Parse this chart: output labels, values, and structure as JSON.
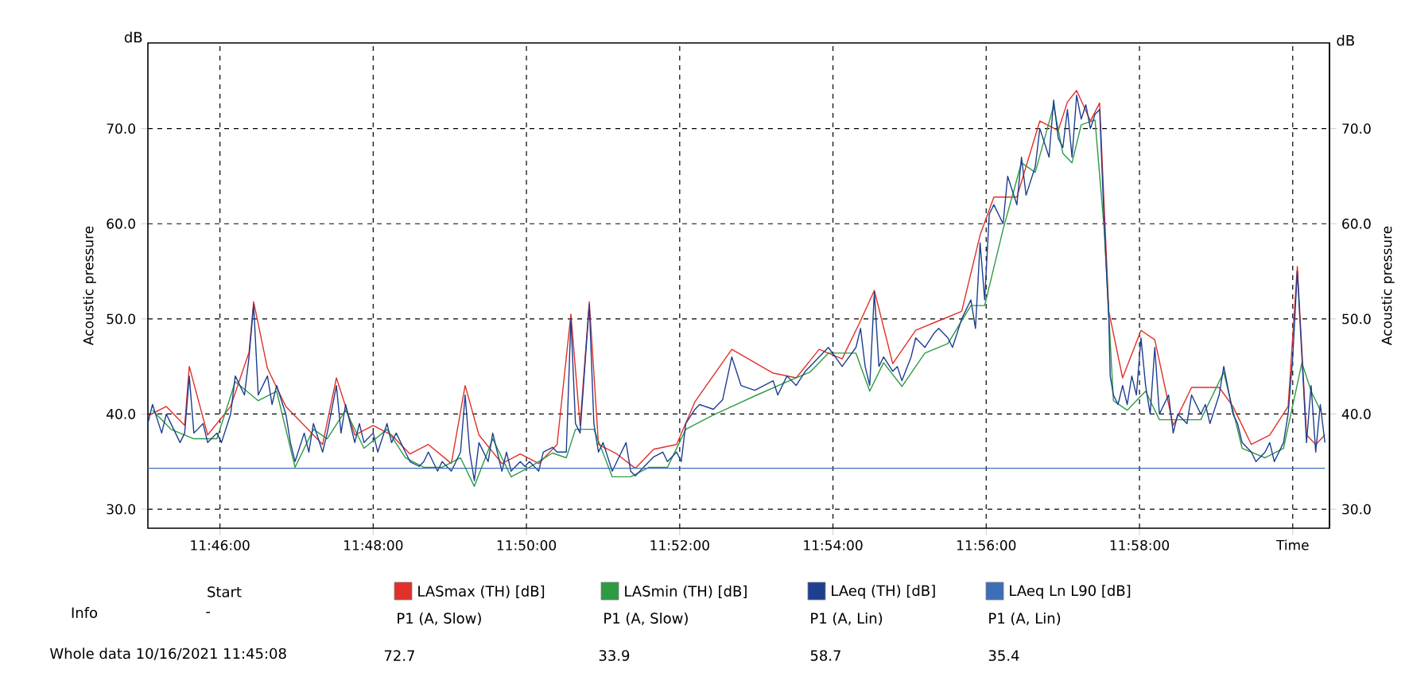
{
  "chart_data": {
    "type": "line",
    "xlabel": "Time",
    "ylabel": "Acoustic pressure",
    "y2label": "Acoustic pressure",
    "annotations": [
      "dB",
      "dB",
      "Info",
      "Start",
      "-",
      "P1 (A, Slow)",
      "P1 (A, Slow)",
      "P1 (A, Lin)",
      "P1 (A, Lin)",
      "Whole data 10/16/2021 11:45:08",
      "72.7",
      "33.9",
      "58.7",
      "35.4"
    ],
    "xlim": [
      11.751,
      12.008
    ],
    "ylim": [
      28,
      79
    ],
    "y2lim": [
      28,
      79
    ],
    "xticks": [
      {
        "value": 11.76667,
        "label": "11:46:00"
      },
      {
        "value": 11.8,
        "label": "11:48:00"
      },
      {
        "value": 11.83333,
        "label": "11:50:00"
      },
      {
        "value": 11.86667,
        "label": "11:52:00"
      },
      {
        "value": 11.9,
        "label": "11:54:00"
      },
      {
        "value": 11.93333,
        "label": "11:56:00"
      },
      {
        "value": 11.96667,
        "label": "11:58:00"
      },
      {
        "value": 12.0,
        "label": null
      }
    ],
    "yticks": [
      {
        "value": 30,
        "label": "30.0"
      },
      {
        "value": 40,
        "label": "40.0"
      },
      {
        "value": 50,
        "label": "50.0"
      },
      {
        "value": 60,
        "label": "60.0"
      },
      {
        "value": 70,
        "label": "70.0"
      }
    ],
    "y2ticks": [
      {
        "value": 30,
        "label": "30.0"
      },
      {
        "value": 40,
        "label": "40.0"
      },
      {
        "value": 50,
        "label": "50.0"
      },
      {
        "value": 60,
        "label": "60.0"
      },
      {
        "value": 70,
        "label": "70.0"
      }
    ],
    "grid": true,
    "legend": "bottom",
    "marker": "none",
    "series": [
      {
        "name": "LASmax (TH) [dB]",
        "color": "#e0302a",
        "x": [
          11.751,
          11.755,
          11.759,
          11.76,
          11.764,
          11.769,
          11.773,
          11.774,
          11.777,
          11.781,
          11.785,
          11.789,
          11.792,
          11.796,
          11.8,
          11.804,
          11.808,
          11.812,
          11.817,
          11.82,
          11.823,
          11.828,
          11.832,
          11.836,
          11.84,
          11.843,
          11.845,
          11.847,
          11.849,
          11.853,
          11.857,
          11.861,
          11.866,
          11.87,
          11.878,
          11.887,
          11.892,
          11.897,
          11.902,
          11.906,
          11.909,
          11.913,
          11.918,
          11.923,
          11.928,
          11.932,
          11.935,
          11.94,
          11.945,
          11.949,
          11.951,
          11.953,
          11.956,
          11.958,
          11.96,
          11.963,
          11.967,
          11.97,
          11.974,
          11.978,
          11.984,
          11.987,
          11.991,
          11.995,
          11.999,
          12.001,
          12.003,
          12.005,
          12.007
        ],
        "values": [
          39.8,
          40.8,
          38.8,
          45,
          37.8,
          40.8,
          46.5,
          51.8,
          44.8,
          40.8,
          38.8,
          36.8,
          43.8,
          37.8,
          38.8,
          37.8,
          35.8,
          36.8,
          34.8,
          43,
          37.8,
          34.8,
          35.8,
          34.8,
          36.8,
          50.5,
          38.8,
          51.8,
          36.8,
          35.8,
          34.3,
          36.3,
          36.8,
          41.3,
          46.8,
          44.3,
          43.8,
          46.8,
          45.8,
          49.8,
          53.0,
          45.3,
          48.8,
          49.8,
          50.8,
          58.8,
          62.8,
          62.8,
          70.8,
          69.8,
          72.8,
          74.0,
          70.8,
          72.7,
          50.8,
          43.8,
          48.8,
          47.8,
          38.8,
          42.8,
          42.8,
          40.8,
          36.8,
          37.8,
          40.8,
          55.5,
          37.8,
          36.8,
          37.8
        ]
      },
      {
        "name": "LASmin (TH) [dB]",
        "color": "#2e9b44",
        "x": [
          11.752,
          11.756,
          11.761,
          11.766,
          11.77,
          11.775,
          11.779,
          11.783,
          11.787,
          11.79,
          11.794,
          11.798,
          11.803,
          11.807,
          11.811,
          11.815,
          11.819,
          11.822,
          11.826,
          11.83,
          11.834,
          11.839,
          11.842,
          11.844,
          11.848,
          11.852,
          11.856,
          11.86,
          11.864,
          11.868,
          11.874,
          11.883,
          11.89,
          11.895,
          11.899,
          11.905,
          11.908,
          11.911,
          11.915,
          11.92,
          11.925,
          11.93,
          11.933,
          11.937,
          11.941,
          11.944,
          11.948,
          11.95,
          11.952,
          11.954,
          11.957,
          11.959,
          11.961,
          11.964,
          11.968,
          11.971,
          11.975,
          11.98,
          11.985,
          11.989,
          11.994,
          11.998,
          12.002,
          12.004,
          12.006
        ],
        "values": [
          40.4,
          38.4,
          37.4,
          37.4,
          43.4,
          41.4,
          42.4,
          34.4,
          38.4,
          37.4,
          40.4,
          36.4,
          38.4,
          35.4,
          34.4,
          34.4,
          35.4,
          32.4,
          37.4,
          33.4,
          34.4,
          35.9,
          35.4,
          38.4,
          38.4,
          33.4,
          33.4,
          34.4,
          34.4,
          38.4,
          39.9,
          41.9,
          43.4,
          44.4,
          46.4,
          46.4,
          42.4,
          45.4,
          42.9,
          46.4,
          47.4,
          51.4,
          51.4,
          59.4,
          66.4,
          65.4,
          72.4,
          67.4,
          66.4,
          70.4,
          70.9,
          59.4,
          41.4,
          40.4,
          42.4,
          39.4,
          39.4,
          39.4,
          44.4,
          36.4,
          35.4,
          36.4,
          45.4,
          42.4,
          40.4
        ]
      },
      {
        "name": "LAeq (TH) [dB]",
        "color": "#1d3f8f",
        "x": [
          11.751,
          11.752,
          11.754,
          11.755,
          11.756,
          11.758,
          11.759,
          11.76,
          11.761,
          11.763,
          11.764,
          11.766,
          11.767,
          11.769,
          11.77,
          11.772,
          11.773,
          11.774,
          11.775,
          11.777,
          11.778,
          11.779,
          11.781,
          11.782,
          11.783,
          11.785,
          11.786,
          11.787,
          11.789,
          11.79,
          11.792,
          11.793,
          11.794,
          11.796,
          11.797,
          11.798,
          11.8,
          11.801,
          11.803,
          11.804,
          11.805,
          11.807,
          11.808,
          11.81,
          11.811,
          11.812,
          11.814,
          11.815,
          11.817,
          11.818,
          11.819,
          11.82,
          11.821,
          11.822,
          11.823,
          11.825,
          11.826,
          11.828,
          11.829,
          11.83,
          11.832,
          11.833,
          11.834,
          11.836,
          11.837,
          11.839,
          11.84,
          11.842,
          11.843,
          11.844,
          11.845,
          11.847,
          11.848,
          11.849,
          11.85,
          11.852,
          11.853,
          11.855,
          11.856,
          11.857,
          11.859,
          11.86,
          11.861,
          11.863,
          11.864,
          11.866,
          11.867,
          11.868,
          11.87,
          11.871,
          11.874,
          11.876,
          11.878,
          11.88,
          11.883,
          11.887,
          11.888,
          11.89,
          11.892,
          11.894,
          11.895,
          11.897,
          11.899,
          11.902,
          11.905,
          11.906,
          11.907,
          11.908,
          11.909,
          11.91,
          11.911,
          11.913,
          11.914,
          11.915,
          11.917,
          11.918,
          11.92,
          11.922,
          11.923,
          11.925,
          11.926,
          11.928,
          11.93,
          11.931,
          11.932,
          11.933,
          11.934,
          11.935,
          11.937,
          11.938,
          11.94,
          11.941,
          11.942,
          11.944,
          11.945,
          11.947,
          11.948,
          11.949,
          11.95,
          11.951,
          11.952,
          11.953,
          11.954,
          11.955,
          11.956,
          11.957,
          11.958,
          11.959,
          11.96,
          11.9603,
          11.961,
          11.962,
          11.963,
          11.964,
          11.965,
          11.966,
          11.967,
          11.968,
          11.969,
          11.97,
          11.971,
          11.973,
          11.974,
          11.975,
          11.977,
          11.978,
          11.98,
          11.981,
          11.982,
          11.984,
          11.985,
          11.987,
          11.988,
          11.989,
          11.991,
          11.992,
          11.994,
          11.995,
          11.996,
          11.998,
          11.999,
          12.0,
          12.001,
          12.002,
          12.003,
          12.004,
          12.005,
          12.006,
          12.007
        ],
        "values": [
          39,
          41,
          38,
          40,
          39,
          37,
          38,
          44,
          38,
          39,
          37,
          38,
          37,
          40,
          44,
          42,
          46,
          51.5,
          42,
          44,
          41,
          43,
          40,
          37,
          35,
          38,
          36,
          39,
          36,
          38,
          43,
          38,
          41,
          37,
          39,
          37,
          38,
          36,
          39,
          37,
          38,
          36,
          35,
          34.5,
          35,
          36,
          34,
          35,
          34,
          35,
          36,
          42,
          36,
          33,
          37,
          35,
          38,
          34,
          36,
          34,
          35,
          34.5,
          35,
          34,
          36,
          36.5,
          36,
          36,
          50,
          39,
          38,
          51.5,
          39,
          36,
          37,
          34,
          35,
          37,
          34,
          33.5,
          34.5,
          35,
          35.5,
          36,
          35,
          36,
          35,
          39,
          40.5,
          41,
          40.5,
          41.5,
          46,
          43,
          42.5,
          43.5,
          42,
          44,
          43,
          44.5,
          45,
          46,
          47,
          45,
          47,
          49,
          45,
          43,
          52.8,
          45,
          46,
          44.5,
          45,
          43.5,
          46,
          48,
          47,
          48.5,
          49,
          48,
          47,
          50,
          52,
          49,
          58,
          52,
          61,
          62,
          60,
          65,
          62,
          67,
          63,
          66,
          70,
          67,
          73,
          69,
          68,
          72,
          67,
          73.5,
          71,
          72.5,
          70,
          71.5,
          72,
          60,
          50,
          44,
          42,
          41,
          43,
          41,
          44,
          42,
          48,
          43,
          40,
          47,
          40,
          42,
          38,
          40,
          39,
          42,
          40,
          41,
          39,
          42,
          45,
          40,
          39,
          37,
          36,
          35,
          36,
          37,
          35,
          37,
          40,
          46,
          55,
          46,
          37,
          43,
          36,
          41,
          37
        ]
      },
      {
        "name": "LAeq Ln L90 [dB]",
        "color": "#3d6eb8",
        "x": [
          11.751,
          12.007
        ],
        "values": [
          34.3,
          34.3
        ]
      }
    ]
  }
}
